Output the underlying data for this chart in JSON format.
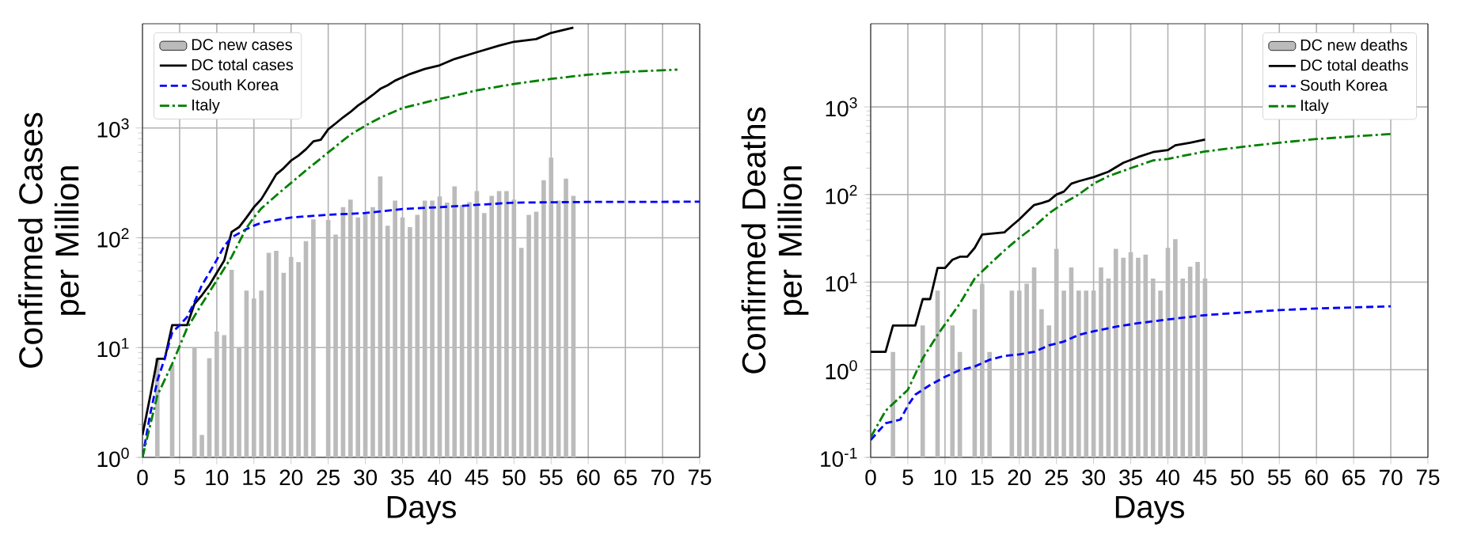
{
  "chart_data": [
    {
      "type": "bar",
      "xlabel": "Days",
      "ylabel": "Confirmed Cases per Million",
      "log": "y",
      "grid": true,
      "legend": "top left",
      "xlim": [
        0,
        75
      ],
      "xticks": [
        0,
        5,
        10,
        15,
        20,
        25,
        30,
        35,
        40,
        45,
        50,
        55,
        60,
        65,
        70,
        75
      ],
      "ylim": [
        1,
        8900
      ],
      "yticks": [
        {
          "value": 1,
          "label": "10$^{0}$"
        },
        {
          "value": 10,
          "label": "10$^{1}$"
        },
        {
          "value": 100,
          "label": "10$^{2}$"
        },
        {
          "value": 1000,
          "label": "10$^{3}$"
        }
      ],
      "series": [
        {
          "name": "DC new cases",
          "color": "#bbbbbb",
          "x": [
            2,
            4,
            7,
            8,
            9,
            10,
            11,
            12,
            13,
            14,
            15,
            16,
            17,
            18,
            19,
            20,
            21,
            22,
            23,
            25,
            26,
            27,
            28,
            29,
            30,
            31,
            32,
            33,
            34,
            35,
            36,
            37,
            38,
            39,
            40,
            41,
            42,
            43,
            44,
            45,
            46,
            47,
            48,
            49,
            50,
            51,
            52,
            53,
            54,
            55,
            56,
            57,
            58
          ],
          "values": [
            8,
            7,
            10,
            1.6,
            8,
            14,
            13,
            51,
            10,
            33,
            28,
            33,
            73,
            76,
            48,
            67,
            60,
            93,
            147,
            145,
            107,
            190,
            223,
            153,
            164,
            190,
            362,
            129,
            218,
            153,
            125,
            162,
            218,
            218,
            238,
            209,
            294,
            198,
            211,
            266,
            168,
            241,
            266,
            266,
            223,
            81,
            162,
            173,
            335,
            537,
            218,
            346,
            241
          ]
        },
        {
          "type": "line",
          "name": "DC total cases",
          "color": "#000000",
          "line_style": "solid",
          "x": [
            0,
            1,
            2,
            3,
            4,
            5,
            6,
            7,
            8,
            9,
            10,
            11,
            12,
            13,
            14,
            15,
            16,
            17,
            18,
            19,
            20,
            21,
            22,
            23,
            24,
            25,
            26,
            27,
            28,
            29,
            30,
            31,
            32,
            33,
            34,
            36,
            38,
            40,
            42,
            45,
            48,
            50,
            53,
            55,
            58
          ],
          "values": [
            1.6,
            3.5,
            7.9,
            7.9,
            16,
            16,
            16,
            25,
            30,
            37,
            48,
            62,
            113,
            125,
            153,
            190,
            225,
            290,
            378,
            430,
            505,
            560,
            640,
            755,
            781,
            973,
            1100,
            1250,
            1400,
            1600,
            1780,
            2000,
            2270,
            2450,
            2700,
            3100,
            3450,
            3720,
            4250,
            4900,
            5630,
            6100,
            6450,
            7350,
            8200
          ]
        },
        {
          "type": "line",
          "name": "South Korea",
          "color": "#0000ff",
          "line_style": "dashed",
          "x": [
            0,
            1,
            2,
            3,
            4,
            5,
            6,
            7,
            8,
            9,
            10,
            11,
            12,
            13,
            14,
            15,
            16,
            18,
            20,
            25,
            30,
            35,
            40,
            50,
            60,
            75
          ],
          "values": [
            1.0,
            2.4,
            5,
            8,
            13.7,
            16,
            19,
            26,
            37,
            48,
            63,
            84,
            101,
            110,
            120,
            129,
            137,
            145,
            153,
            162,
            168,
            183,
            190,
            209,
            212,
            213
          ]
        },
        {
          "type": "line",
          "name": "Italy",
          "color": "#008000",
          "line_style": "dashdot",
          "x": [
            0,
            2,
            4,
            6,
            8,
            10,
            12,
            14,
            15,
            16,
            18,
            20,
            22,
            24,
            26,
            28,
            30,
            32,
            35,
            39,
            45,
            50,
            55,
            60,
            65,
            72
          ],
          "values": [
            1.0,
            3.66,
            7.1,
            15,
            25,
            41,
            67,
            123,
            153,
            185,
            243,
            316,
            411,
            527,
            680,
            870,
            1050,
            1240,
            1520,
            1770,
            2200,
            2520,
            2800,
            3060,
            3240,
            3400
          ]
        }
      ]
    },
    {
      "type": "bar",
      "xlabel": "Days",
      "ylabel": "Confirmed Deaths per Million",
      "log": "y",
      "grid": true,
      "legend": "top right",
      "xlim": [
        0,
        75
      ],
      "xticks": [
        0,
        5,
        10,
        15,
        20,
        25,
        30,
        35,
        40,
        45,
        50,
        55,
        60,
        65,
        70,
        75
      ],
      "ylim": [
        0.1,
        8900
      ],
      "yticks": [
        {
          "value": 0.1,
          "label": "10$^{-1}$"
        },
        {
          "value": 1,
          "label": "10$^{0}$"
        },
        {
          "value": 10,
          "label": "10$^{1}$"
        },
        {
          "value": 100,
          "label": "10$^{2}$"
        },
        {
          "value": 1000,
          "label": "10$^{3}$"
        }
      ],
      "series": [
        {
          "name": "DC new deaths",
          "color": "#bbbbbb",
          "x": [
            3,
            7,
            9,
            11,
            12,
            14,
            15,
            16,
            19,
            20,
            21,
            22,
            23,
            24,
            25,
            26,
            27,
            28,
            29,
            30,
            31,
            32,
            33,
            34,
            35,
            36,
            37,
            38,
            39,
            40,
            41,
            42,
            43,
            44,
            45
          ],
          "values": [
            1.6,
            3.2,
            8,
            3.2,
            1.6,
            4.9,
            9.6,
            1.6,
            8,
            8,
            9.6,
            14.7,
            4.9,
            3.2,
            24,
            8,
            14.7,
            8,
            8,
            8,
            14.7,
            11,
            24,
            19,
            22,
            19,
            20.6,
            11,
            8,
            24.6,
            31,
            11,
            15,
            17,
            11
          ]
        },
        {
          "type": "line",
          "name": "DC total deaths",
          "color": "#000000",
          "line_style": "solid",
          "x": [
            0,
            2,
            3,
            6,
            7,
            8,
            9,
            10,
            11,
            12,
            13,
            14,
            15,
            18,
            19,
            20,
            21,
            22,
            23,
            24,
            25,
            26,
            27,
            28,
            30,
            32,
            34,
            36,
            38,
            40,
            41,
            43,
            45
          ],
          "values": [
            1.6,
            1.6,
            3.2,
            3.2,
            6.4,
            6.4,
            14.5,
            14.5,
            18,
            19.5,
            19.5,
            24.6,
            35,
            37,
            44,
            52,
            63,
            76,
            80,
            85,
            100,
            108,
            133,
            142,
            158,
            182,
            230,
            268,
            305,
            322,
            365,
            391,
            425
          ]
        },
        {
          "type": "line",
          "name": "South Korea",
          "color": "#0000ff",
          "line_style": "dashed",
          "x": [
            0,
            2,
            4,
            5,
            6,
            8,
            10,
            12,
            14,
            16,
            18,
            20,
            22,
            24,
            26,
            28,
            30,
            33,
            36,
            40,
            45,
            50,
            55,
            60,
            70
          ],
          "values": [
            0.158,
            0.245,
            0.27,
            0.39,
            0.52,
            0.67,
            0.83,
            0.99,
            1.09,
            1.3,
            1.44,
            1.5,
            1.6,
            1.9,
            2.1,
            2.5,
            2.75,
            3.1,
            3.4,
            3.75,
            4.2,
            4.5,
            4.8,
            5.0,
            5.3
          ]
        },
        {
          "type": "line",
          "name": "Italy",
          "color": "#008000",
          "line_style": "dashdot",
          "x": [
            0,
            2,
            5,
            7,
            9,
            10,
            12,
            14,
            16,
            18,
            20,
            22,
            24,
            26,
            28,
            30,
            32,
            35,
            38,
            40,
            45,
            50,
            55,
            60,
            65,
            70
          ],
          "values": [
            0.17,
            0.34,
            0.59,
            1.35,
            2.5,
            3.3,
            5.7,
            11,
            16,
            23,
            32,
            43,
            61,
            80,
            100,
            133,
            162,
            200,
            245,
            255,
            310,
            350,
            390,
            430,
            460,
            490
          ]
        }
      ]
    }
  ]
}
